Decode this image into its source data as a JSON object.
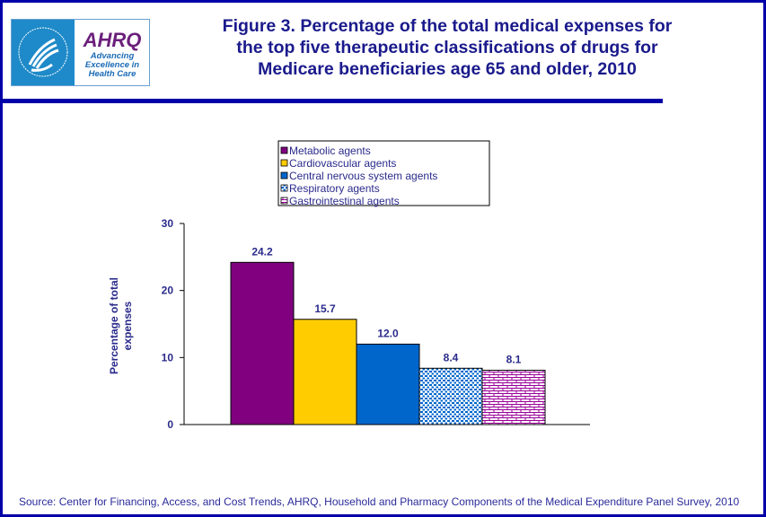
{
  "header": {
    "title_lines": [
      "Figure 3. Percentage of the total medical expenses for",
      "the top five therapeutic classifications  of drugs for",
      "Medicare beneficiaries age 65 and older, 2010"
    ],
    "logo": {
      "ahrq": "AHRQ",
      "tagline": [
        "Advancing",
        "Excellence in",
        "Health Care"
      ],
      "seal": "DEPARTMENT OF HEALTH & HUMAN SERVICES USA"
    }
  },
  "source": "Source: Center for Financing, Access, and Cost Trends, AHRQ, Household and Pharmacy Components of the Medical Expenditure Panel Survey,  2010",
  "chart_data": {
    "type": "bar",
    "title": "",
    "xlabel": "",
    "ylabel": "Percentage of total expenses",
    "ylim": [
      0,
      30
    ],
    "yticks": [
      0,
      10,
      20,
      30
    ],
    "grid": false,
    "legend": "top",
    "series": [
      {
        "name": "Metabolic agents",
        "value": 24.2,
        "label": "24.2",
        "color": "#800080",
        "pattern": "solid"
      },
      {
        "name": "Cardiovascular agents",
        "value": 15.7,
        "label": "15.7",
        "color": "#ffcc00",
        "pattern": "solid"
      },
      {
        "name": "Central nervous system agents",
        "value": 12.0,
        "label": "12.0",
        "color": "#0066cc",
        "pattern": "solid"
      },
      {
        "name": "Respiratory agents",
        "value": 8.4,
        "label": "8.4",
        "color": "#0066cc",
        "pattern": "dots"
      },
      {
        "name": "Gastrointestinal agents",
        "value": 8.1,
        "label": "8.1",
        "color": "#990099",
        "pattern": "bricks"
      }
    ]
  }
}
